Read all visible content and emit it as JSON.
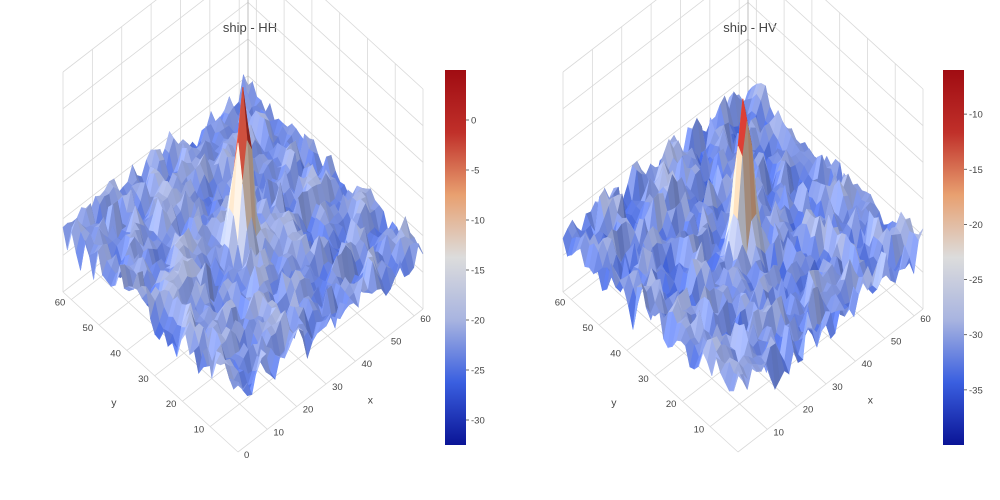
{
  "chart_data": [
    {
      "type": "surface",
      "title": "ship - HH",
      "x_ticks": [
        0,
        10,
        20,
        30,
        40,
        50,
        60
      ],
      "y_ticks": [
        10,
        20,
        30,
        40,
        50,
        60
      ],
      "xlabel": "x",
      "ylabel": "y",
      "x_range": [
        0,
        63
      ],
      "y_range": [
        0,
        63
      ],
      "z_range": [
        -32.5,
        5
      ],
      "background_level": -22,
      "peak": {
        "x": 30,
        "y": 30,
        "z": 5
      },
      "colorbar": {
        "range": [
          -32.5,
          5
        ],
        "ticks": [
          0,
          -5,
          -10,
          -15,
          -20,
          -25,
          -30
        ]
      },
      "colorscale": [
        "#0a1496",
        "#3a5fe0",
        "#a8b4e0",
        "#dcdcdc",
        "#e8a070",
        "#c0302a",
        "#a00c12"
      ]
    },
    {
      "type": "surface",
      "title": "ship - HV",
      "x_ticks": [
        10,
        20,
        30,
        40,
        50,
        60
      ],
      "y_ticks": [
        10,
        20,
        30,
        40,
        50,
        60
      ],
      "xlabel": "x",
      "ylabel": "y",
      "x_range": [
        0,
        63
      ],
      "y_range": [
        0,
        63
      ],
      "z_range": [
        -40,
        -6
      ],
      "background_level": -31,
      "peak": {
        "x": 30,
        "y": 30,
        "z": -6
      },
      "colorbar": {
        "range": [
          -40,
          -6
        ],
        "ticks": [
          -10,
          -15,
          -20,
          -25,
          -30,
          -35
        ]
      },
      "colorscale": [
        "#0a1496",
        "#3a5fe0",
        "#a8b4e0",
        "#dcdcdc",
        "#e8a070",
        "#c0302a",
        "#a00c12"
      ]
    }
  ]
}
